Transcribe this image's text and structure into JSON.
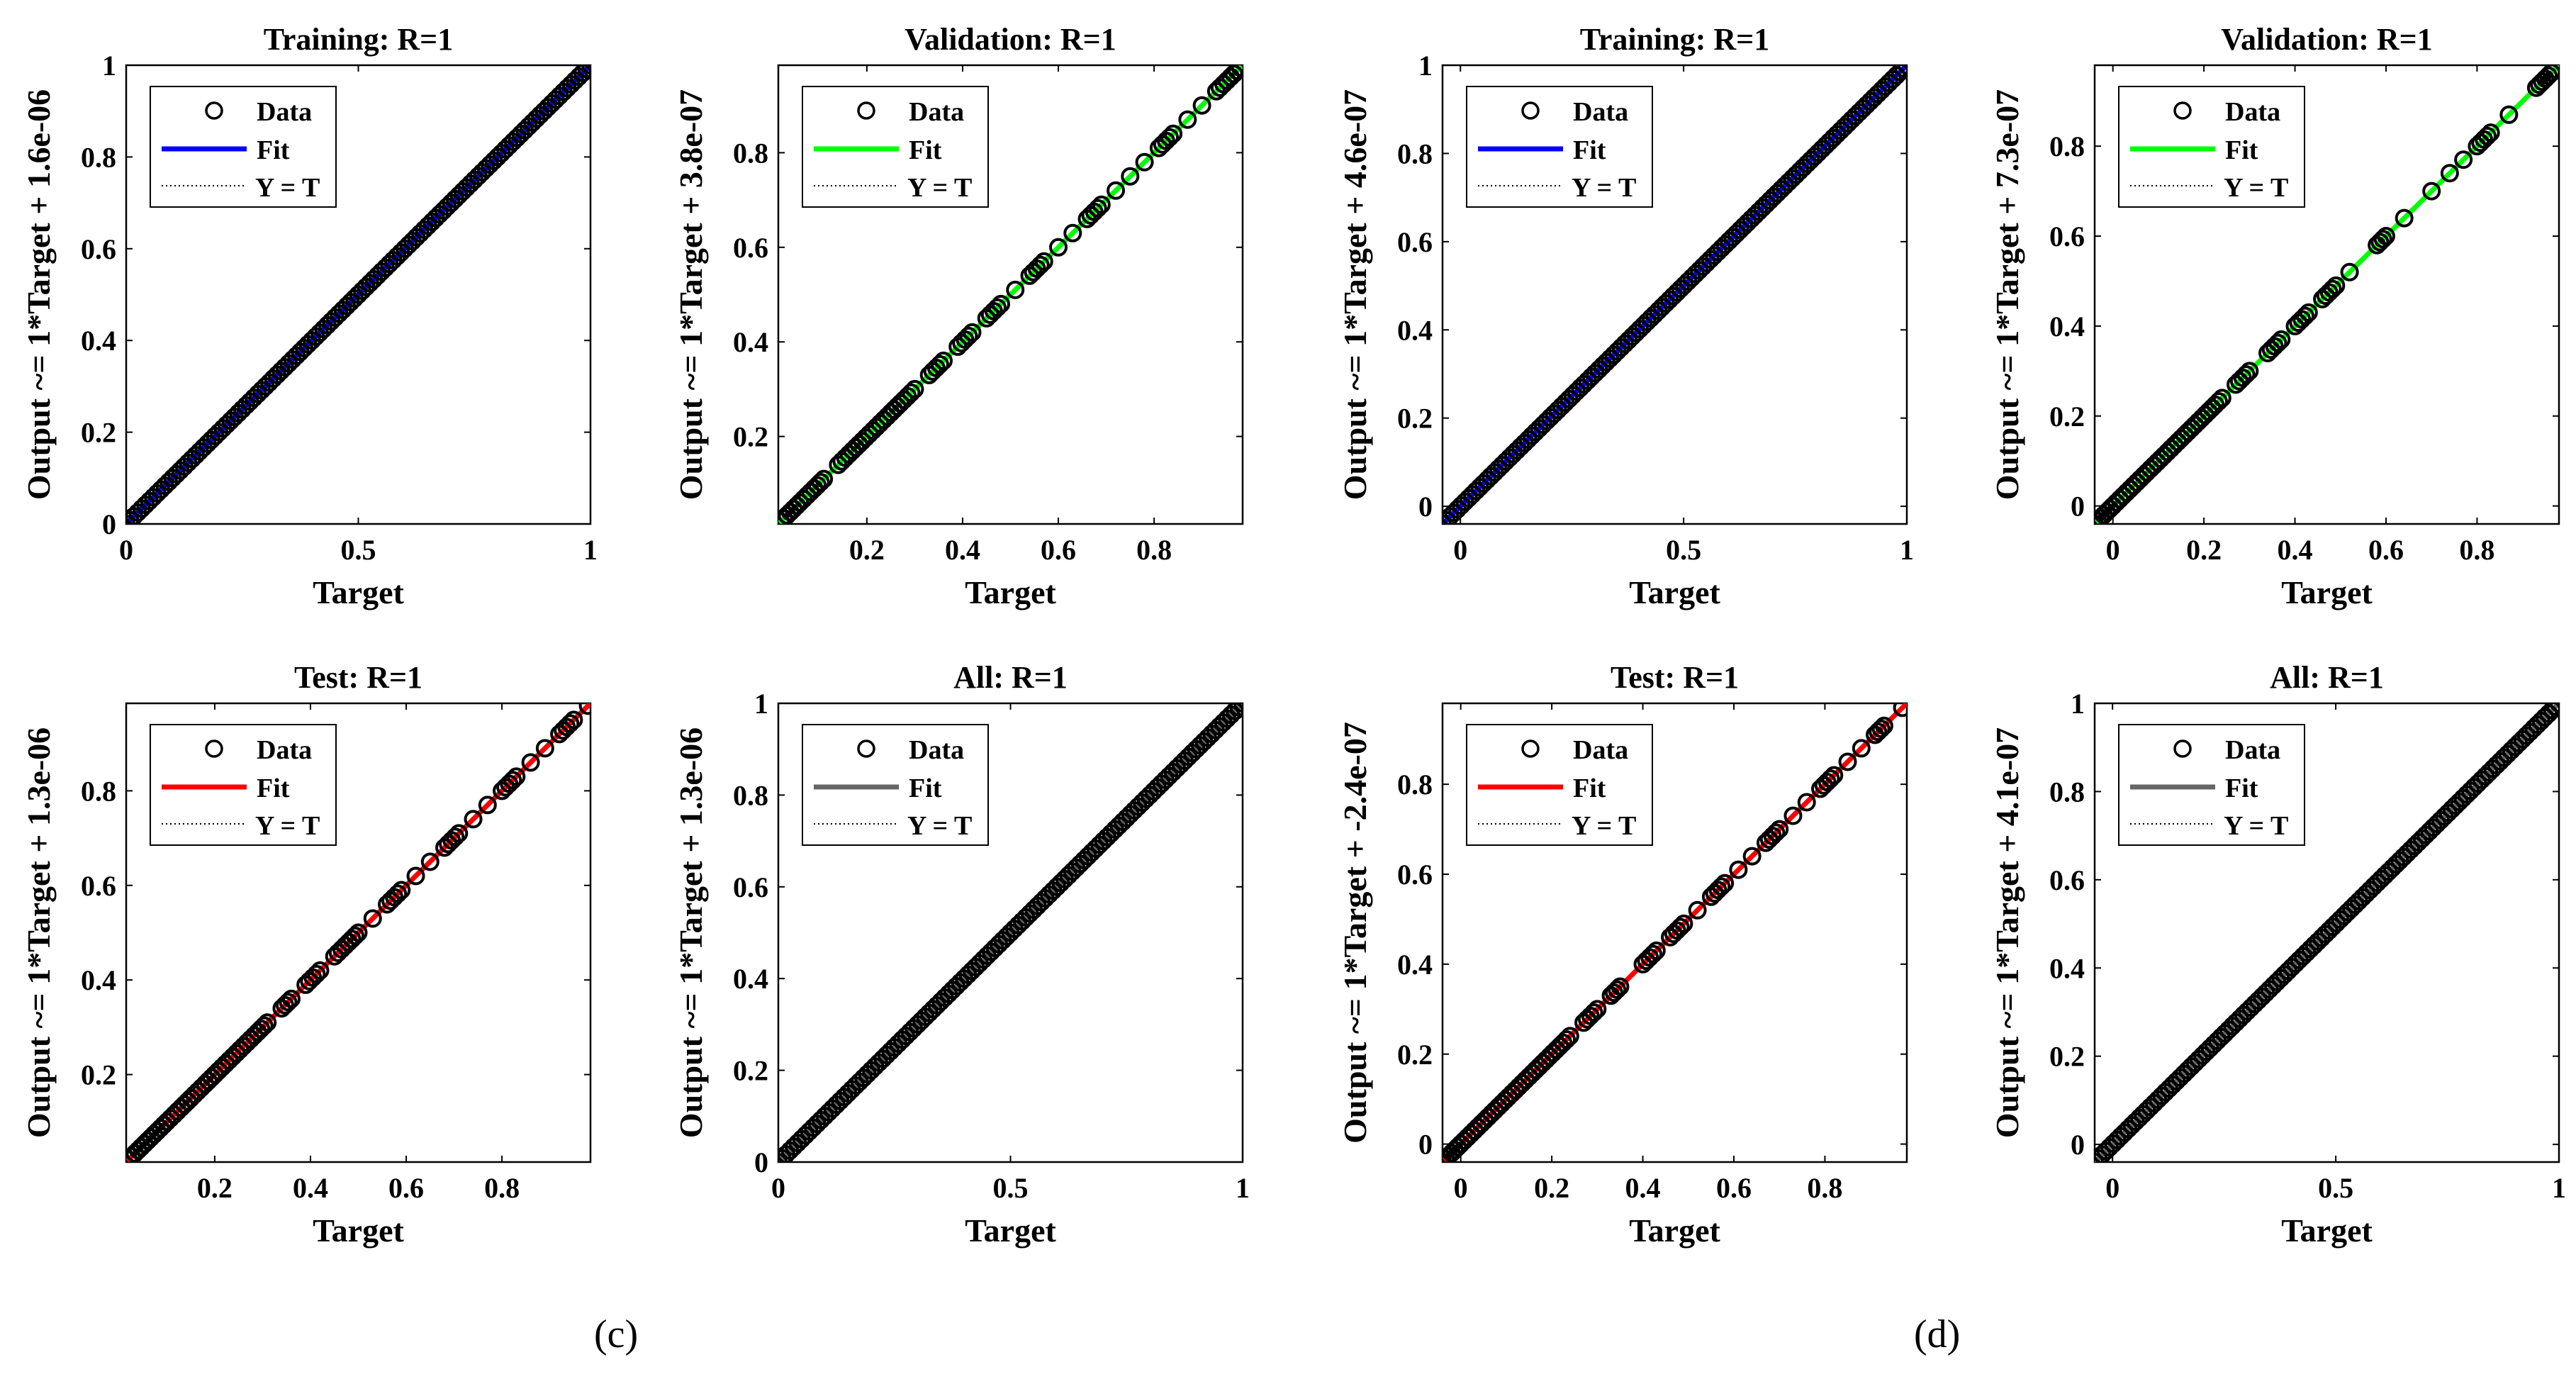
{
  "panel_labels": [
    "(c)",
    "(d)"
  ],
  "legend": {
    "data_label": "Data",
    "fit_label": "Fit",
    "yt_label": "Y = T"
  },
  "colors": {
    "training": "#0000ff",
    "validation": "#00ff00",
    "test": "#ff0000",
    "all": "#666666"
  },
  "chart_data": [
    {
      "type": "scatter",
      "title": "Training: R=1",
      "xlabel": "Target",
      "ylabel": "Output ~= 1*Target + 1.6e-06",
      "fit_color": "#0000ff",
      "xlim": [
        0,
        1
      ],
      "ylim": [
        0,
        1
      ],
      "xticks": [
        0,
        0.5,
        1
      ],
      "xtick_labels": [
        "0",
        "0.5",
        "1"
      ],
      "yticks": [
        0,
        0.2,
        0.4,
        0.6,
        0.8,
        1
      ],
      "ytick_labels": [
        "0",
        "0.2",
        "0.4",
        "0.6",
        "0.8",
        "1"
      ],
      "points": [
        0,
        0.025,
        0.05,
        0.075,
        0.1,
        0.125,
        0.15,
        0.175,
        0.2,
        0.225,
        0.25,
        0.275,
        0.3,
        0.325,
        0.35,
        0.375,
        0.4,
        0.425,
        0.45,
        0.475,
        0.5,
        0.525,
        0.55,
        0.575,
        0.6,
        0.625,
        0.65,
        0.675,
        0.7,
        0.725,
        0.75,
        0.775,
        0.8,
        0.825,
        0.85,
        0.875,
        0.9,
        0.925,
        0.95,
        0.975,
        1
      ]
    },
    {
      "type": "scatter",
      "title": "Validation: R=1",
      "xlabel": "Target",
      "ylabel": "Output ~= 1*Target + 3.8e-07",
      "fit_color": "#00ff00",
      "xlim": [
        0.015,
        0.985
      ],
      "ylim": [
        0.015,
        0.985
      ],
      "xticks": [
        0.2,
        0.4,
        0.6,
        0.8
      ],
      "xtick_labels": [
        "0.2",
        "0.4",
        "0.6",
        "0.8"
      ],
      "yticks": [
        0.2,
        0.4,
        0.6,
        0.8
      ],
      "ytick_labels": [
        "0.2",
        "0.4",
        "0.6",
        "0.8"
      ],
      "points": [
        0.02,
        0.04,
        0.06,
        0.09,
        0.11,
        0.14,
        0.17,
        0.19,
        0.22,
        0.25,
        0.27,
        0.3,
        0.33,
        0.36,
        0.39,
        0.42,
        0.45,
        0.48,
        0.51,
        0.54,
        0.57,
        0.6,
        0.63,
        0.66,
        0.69,
        0.72,
        0.75,
        0.78,
        0.81,
        0.84,
        0.87,
        0.9,
        0.93,
        0.96,
        0.98
      ]
    },
    {
      "type": "scatter",
      "title": "Training: R=1",
      "xlabel": "Target",
      "ylabel": "Output ~= 1*Target + 4.6e-07",
      "fit_color": "#0000ff",
      "xlim": [
        -0.04,
        1
      ],
      "ylim": [
        -0.04,
        1
      ],
      "xticks": [
        0,
        0.5,
        1
      ],
      "xtick_labels": [
        "0",
        "0.5",
        "1"
      ],
      "yticks": [
        0,
        0.2,
        0.4,
        0.6,
        0.8,
        1
      ],
      "ytick_labels": [
        "0",
        "0.2",
        "0.4",
        "0.6",
        "0.8",
        "1"
      ],
      "points": [
        -0.04,
        -0.015,
        0.01,
        0.035,
        0.06,
        0.085,
        0.11,
        0.135,
        0.16,
        0.185,
        0.21,
        0.235,
        0.26,
        0.285,
        0.31,
        0.335,
        0.36,
        0.385,
        0.41,
        0.435,
        0.46,
        0.485,
        0.51,
        0.535,
        0.56,
        0.585,
        0.61,
        0.635,
        0.66,
        0.685,
        0.71,
        0.735,
        0.76,
        0.785,
        0.81,
        0.835,
        0.86,
        0.885,
        0.91,
        0.935,
        0.96,
        0.985,
        1
      ]
    },
    {
      "type": "scatter",
      "title": "Validation: R=1",
      "xlabel": "Target",
      "ylabel": "Output ~= 1*Target + 7.3e-07",
      "fit_color": "#00ff00",
      "xlim": [
        -0.04,
        0.98
      ],
      "ylim": [
        -0.04,
        0.98
      ],
      "xticks": [
        0,
        0.2,
        0.4,
        0.6,
        0.8
      ],
      "xtick_labels": [
        "0",
        "0.2",
        "0.4",
        "0.6",
        "0.8"
      ],
      "yticks": [
        0,
        0.2,
        0.4,
        0.6,
        0.8
      ],
      "ytick_labels": [
        "0",
        "0.2",
        "0.4",
        "0.6",
        "0.8"
      ],
      "points": [
        -0.04,
        -0.02,
        0.0,
        0.03,
        0.06,
        0.09,
        0.12,
        0.15,
        0.18,
        0.21,
        0.24,
        0.27,
        0.3,
        0.34,
        0.37,
        0.4,
        0.43,
        0.46,
        0.49,
        0.52,
        0.58,
        0.6,
        0.64,
        0.7,
        0.74,
        0.77,
        0.8,
        0.83,
        0.87,
        0.93,
        0.95,
        0.97
      ]
    },
    {
      "type": "scatter",
      "title": "Test: R=1",
      "xlabel": "Target",
      "ylabel": "Output ~= 1*Target + 1.3e-06",
      "fit_color": "#ff0000",
      "xlim": [
        0.015,
        0.985
      ],
      "ylim": [
        0.015,
        0.985
      ],
      "xticks": [
        0.2,
        0.4,
        0.6,
        0.8
      ],
      "xtick_labels": [
        "0.2",
        "0.4",
        "0.6",
        "0.8"
      ],
      "yticks": [
        0.2,
        0.4,
        0.6,
        0.8
      ],
      "ytick_labels": [
        "0.2",
        "0.4",
        "0.6",
        "0.8"
      ],
      "points": [
        0.02,
        0.04,
        0.06,
        0.08,
        0.1,
        0.13,
        0.15,
        0.18,
        0.2,
        0.23,
        0.26,
        0.29,
        0.31,
        0.34,
        0.36,
        0.39,
        0.42,
        0.45,
        0.48,
        0.5,
        0.53,
        0.56,
        0.59,
        0.62,
        0.65,
        0.68,
        0.71,
        0.74,
        0.77,
        0.8,
        0.83,
        0.86,
        0.89,
        0.92,
        0.95,
        0.98
      ]
    },
    {
      "type": "scatter",
      "title": "All: R=1",
      "xlabel": "Target",
      "ylabel": "Output ~= 1*Target + 1.3e-06",
      "fit_color": "#666666",
      "xlim": [
        0,
        1
      ],
      "ylim": [
        0,
        1
      ],
      "xticks": [
        0,
        0.5,
        1
      ],
      "xtick_labels": [
        "0",
        "0.5",
        "1"
      ],
      "yticks": [
        0,
        0.2,
        0.4,
        0.6,
        0.8,
        1
      ],
      "ytick_labels": [
        "0",
        "0.2",
        "0.4",
        "0.6",
        "0.8",
        "1"
      ],
      "points": [
        0,
        0.025,
        0.05,
        0.075,
        0.1,
        0.125,
        0.15,
        0.175,
        0.2,
        0.225,
        0.25,
        0.275,
        0.3,
        0.325,
        0.35,
        0.375,
        0.4,
        0.425,
        0.45,
        0.475,
        0.5,
        0.525,
        0.55,
        0.575,
        0.6,
        0.625,
        0.65,
        0.675,
        0.7,
        0.725,
        0.75,
        0.775,
        0.8,
        0.825,
        0.85,
        0.875,
        0.9,
        0.925,
        0.95,
        0.975,
        1
      ]
    },
    {
      "type": "scatter",
      "title": "Test: R=1",
      "xlabel": "Target",
      "ylabel": "Output ~= 1*Target + -2.4e-07",
      "fit_color": "#ff0000",
      "xlim": [
        -0.04,
        0.98
      ],
      "ylim": [
        -0.04,
        0.98
      ],
      "xticks": [
        0,
        0.2,
        0.4,
        0.6,
        0.8
      ],
      "xtick_labels": [
        "0",
        "0.2",
        "0.4",
        "0.6",
        "0.8"
      ],
      "yticks": [
        0,
        0.2,
        0.4,
        0.6,
        0.8
      ],
      "ytick_labels": [
        "0",
        "0.2",
        "0.4",
        "0.6",
        "0.8"
      ],
      "points": [
        -0.04,
        -0.02,
        0.0,
        0.03,
        0.06,
        0.09,
        0.12,
        0.15,
        0.18,
        0.21,
        0.24,
        0.27,
        0.3,
        0.33,
        0.35,
        0.4,
        0.43,
        0.46,
        0.49,
        0.52,
        0.55,
        0.58,
        0.61,
        0.64,
        0.67,
        0.7,
        0.73,
        0.76,
        0.79,
        0.82,
        0.85,
        0.88,
        0.91,
        0.93,
        0.97
      ]
    },
    {
      "type": "scatter",
      "title": "All: R=1",
      "xlabel": "Target",
      "ylabel": "Output ~= 1*Target + 4.1e-07",
      "fit_color": "#666666",
      "xlim": [
        -0.04,
        1
      ],
      "ylim": [
        -0.04,
        1
      ],
      "xticks": [
        0,
        0.5,
        1
      ],
      "xtick_labels": [
        "0",
        "0.5",
        "1"
      ],
      "yticks": [
        0,
        0.2,
        0.4,
        0.6,
        0.8,
        1
      ],
      "ytick_labels": [
        "0",
        "0.2",
        "0.4",
        "0.6",
        "0.8",
        "1"
      ],
      "points": [
        -0.04,
        -0.015,
        0.01,
        0.035,
        0.06,
        0.085,
        0.11,
        0.135,
        0.16,
        0.185,
        0.21,
        0.235,
        0.26,
        0.285,
        0.31,
        0.335,
        0.36,
        0.385,
        0.41,
        0.435,
        0.46,
        0.485,
        0.51,
        0.535,
        0.56,
        0.585,
        0.61,
        0.635,
        0.66,
        0.685,
        0.71,
        0.735,
        0.76,
        0.785,
        0.81,
        0.835,
        0.86,
        0.885,
        0.91,
        0.935,
        0.96,
        0.985,
        1
      ]
    }
  ]
}
